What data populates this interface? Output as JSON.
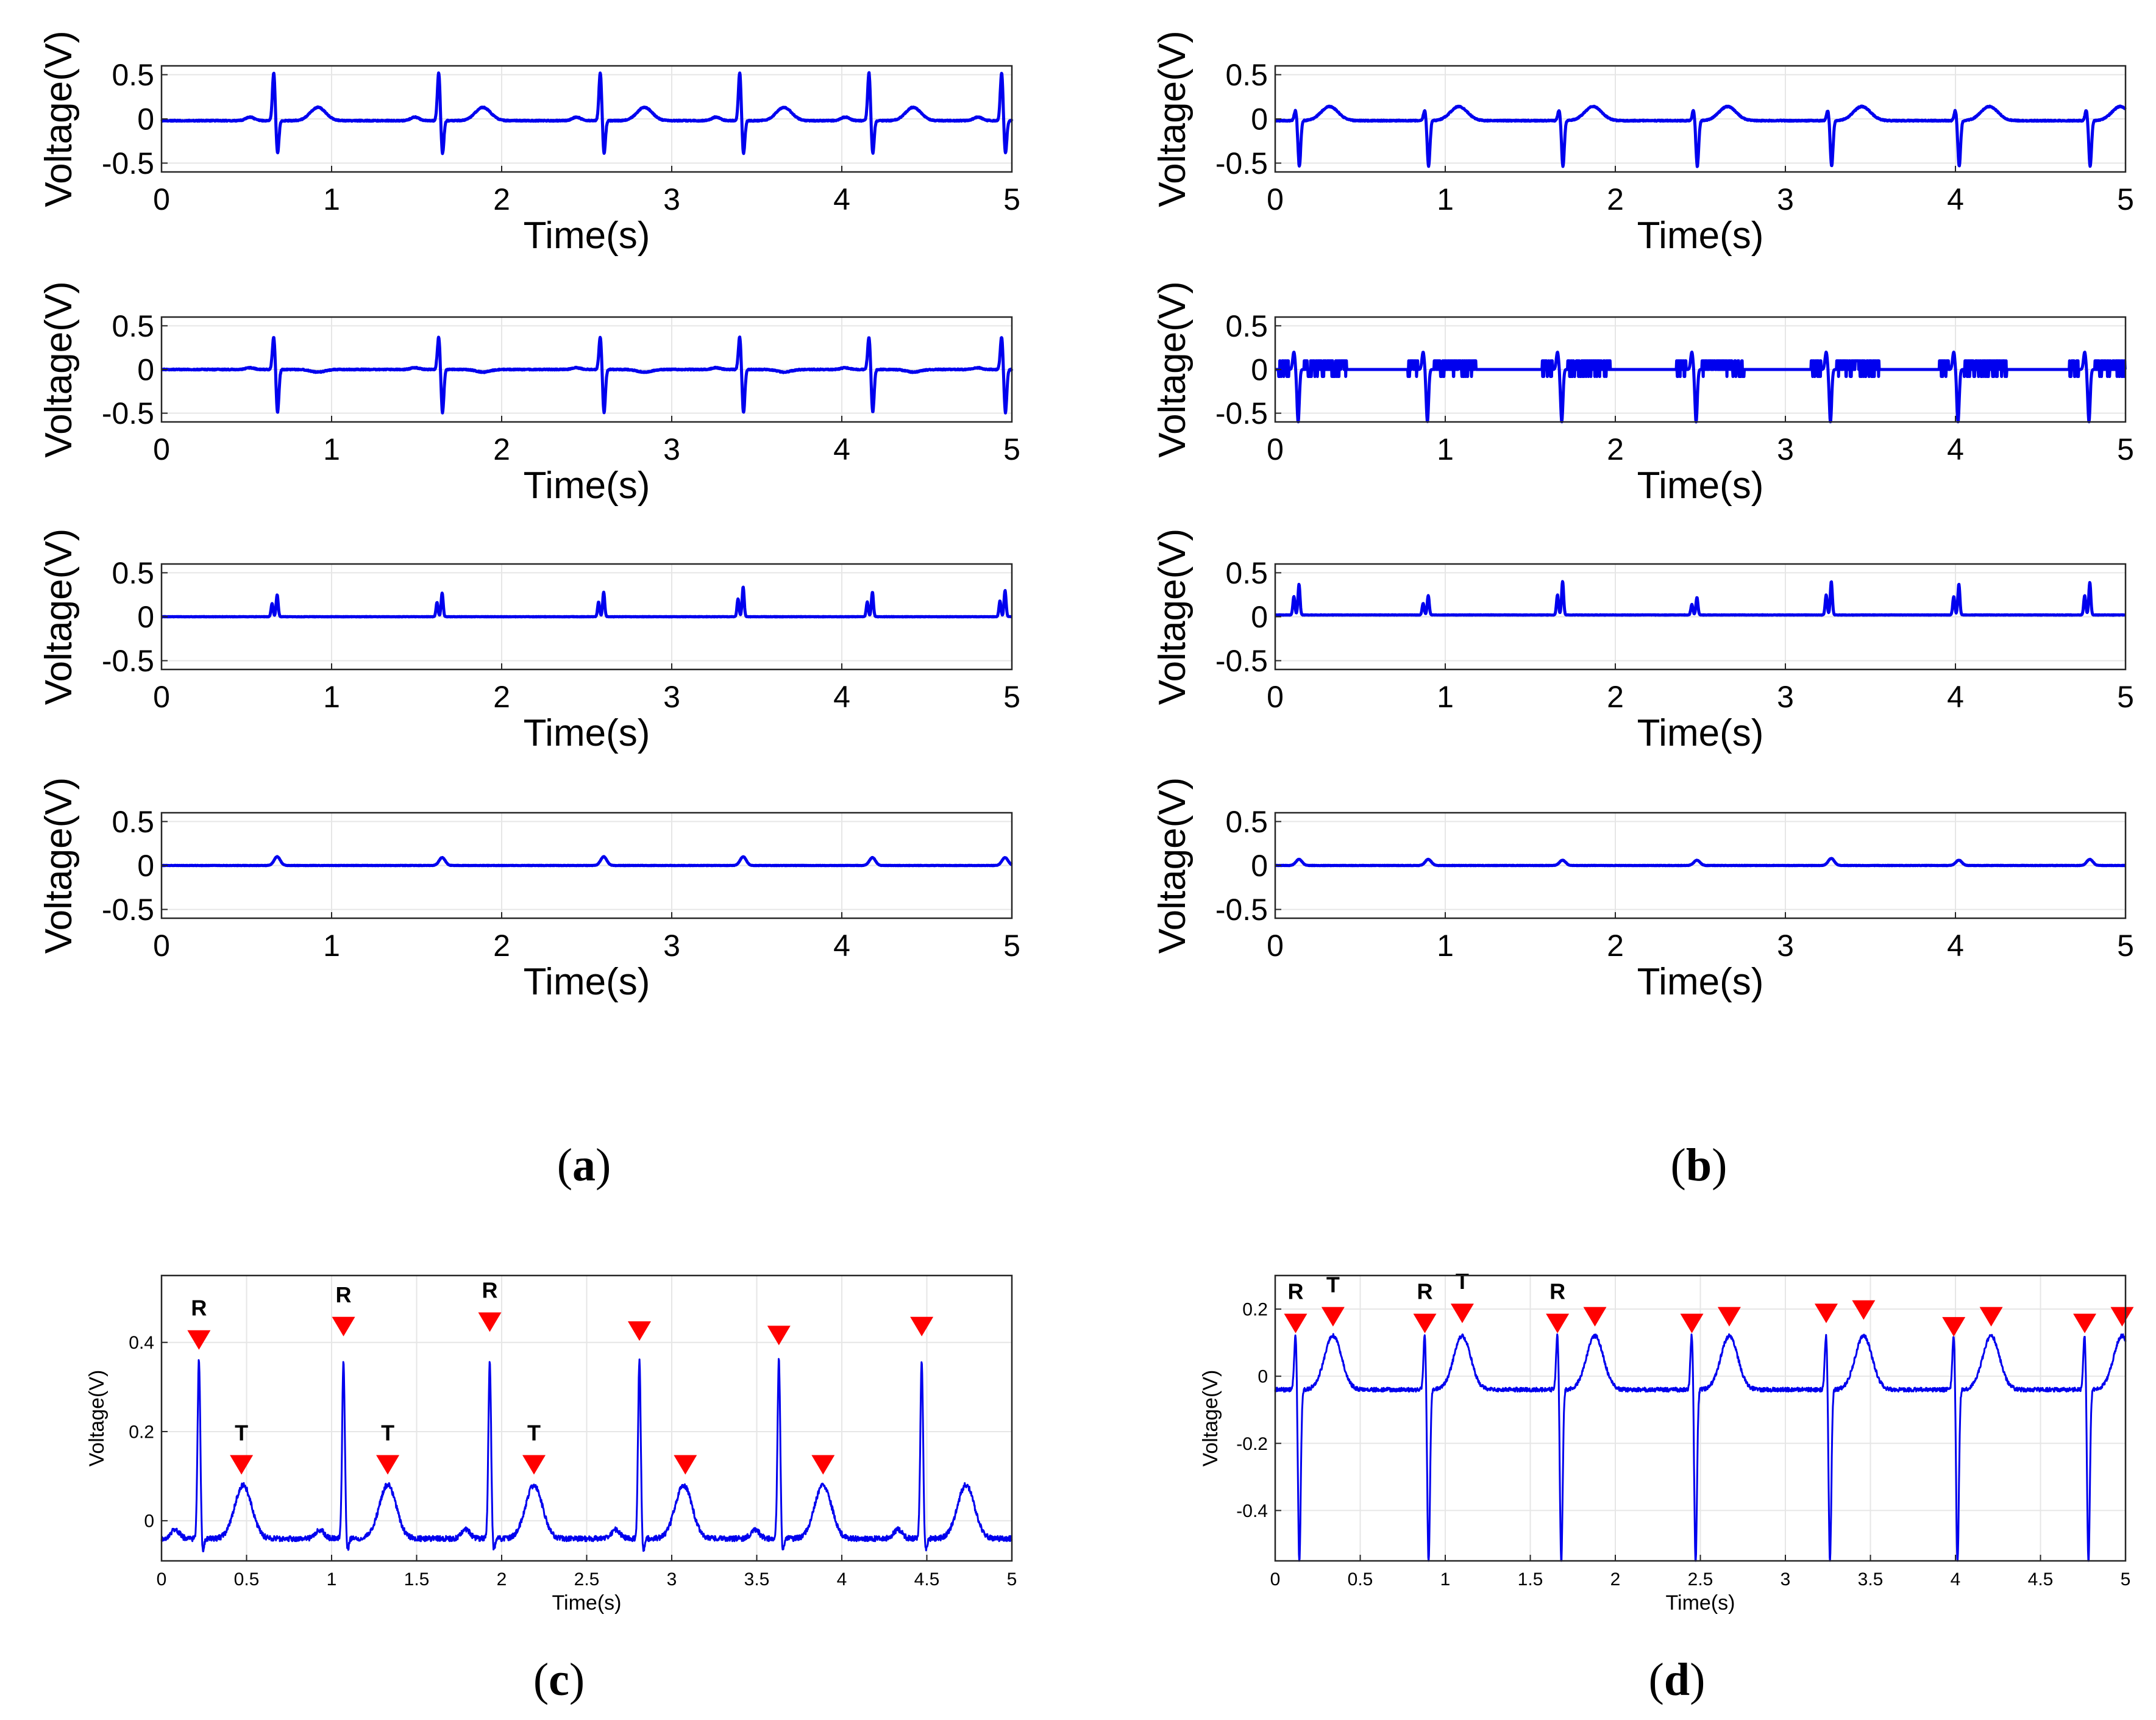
{
  "figure": {
    "captions": [
      {
        "open": "(",
        "letter": "a",
        "close": ")"
      },
      {
        "open": "(",
        "letter": "b",
        "close": ")"
      },
      {
        "open": "(",
        "letter": "c",
        "close": ")"
      },
      {
        "open": "(",
        "letter": "d",
        "close": ")"
      }
    ]
  },
  "colors": {
    "trace": "#0000ee",
    "marker": "#ff0000",
    "grid": "#e6e6e6",
    "axis": "#262626"
  },
  "chart_data": [
    {
      "id": "a1",
      "panel": "a",
      "type": "line",
      "title": "",
      "xlabel": "Time(s)",
      "ylabel": "Voltage(V)",
      "xlim": [
        0,
        5
      ],
      "ylim": [
        -0.6,
        0.6
      ],
      "xticks": [
        "0",
        "1",
        "2",
        "3",
        "4",
        "5"
      ],
      "yticks": [
        "0.5",
        "0",
        "-0.5"
      ],
      "ytick_values": [
        0.5,
        0,
        -0.5
      ],
      "xtick_values": [
        0,
        1,
        2,
        3,
        4,
        5
      ],
      "signal": {
        "kind": "ecg",
        "beats": [
          0.66,
          1.63,
          2.58,
          3.4,
          4.16,
          4.94
        ],
        "r_amp": 0.55,
        "s_amp": -0.38,
        "t_amp": 0.15,
        "t_delay": 0.26,
        "t_width": 0.045,
        "p_amp": 0.04,
        "baseline": -0.02
      }
    },
    {
      "id": "a2",
      "panel": "a",
      "type": "line",
      "title": "",
      "xlabel": "Time(s)",
      "ylabel": "Voltage(V)",
      "xlim": [
        0,
        5
      ],
      "ylim": [
        -0.6,
        0.6
      ],
      "xticks": [
        "0",
        "1",
        "2",
        "3",
        "4",
        "5"
      ],
      "yticks": [
        "0.5",
        "0",
        "-0.5"
      ],
      "ytick_values": [
        0.5,
        0,
        -0.5
      ],
      "xtick_values": [
        0,
        1,
        2,
        3,
        4,
        5
      ],
      "signal": {
        "kind": "ecg",
        "beats": [
          0.66,
          1.63,
          2.58,
          3.4,
          4.16,
          4.94
        ],
        "r_amp": 0.38,
        "s_amp": -0.5,
        "t_amp": -0.03,
        "t_delay": 0.26,
        "t_width": 0.04,
        "p_amp": 0.02,
        "baseline": 0.0
      }
    },
    {
      "id": "a3",
      "panel": "a",
      "type": "line",
      "title": "",
      "xlabel": "Time(s)",
      "ylabel": "Voltage(V)",
      "xlim": [
        0,
        5
      ],
      "ylim": [
        -0.6,
        0.6
      ],
      "xticks": [
        "0",
        "1",
        "2",
        "3",
        "4",
        "5"
      ],
      "yticks": [
        "0.5",
        "0",
        "-0.5"
      ],
      "ytick_values": [
        0.5,
        0,
        -0.5
      ],
      "xtick_values": [
        0,
        1,
        2,
        3,
        4,
        5
      ],
      "signal": {
        "kind": "spikes",
        "beats": [
          0.66,
          1.63,
          2.58,
          3.4,
          4.16,
          4.94
        ],
        "amps": [
          0.25,
          0.27,
          0.28,
          0.34,
          0.28,
          0.3
        ],
        "baseline": 0.0
      }
    },
    {
      "id": "a4",
      "panel": "a",
      "type": "line",
      "title": "",
      "xlabel": "Time(s)",
      "ylabel": "Voltage(V)",
      "xlim": [
        0,
        5
      ],
      "ylim": [
        -0.6,
        0.6
      ],
      "xticks": [
        "0",
        "1",
        "2",
        "3",
        "4",
        "5"
      ],
      "yticks": [
        "0.5",
        "0",
        "-0.5"
      ],
      "ytick_values": [
        0.5,
        0,
        -0.5
      ],
      "xtick_values": [
        0,
        1,
        2,
        3,
        4,
        5
      ],
      "signal": {
        "kind": "bumps",
        "beats": [
          0.66,
          1.63,
          2.58,
          3.4,
          4.16,
          4.94
        ],
        "amps": [
          0.1,
          0.09,
          0.1,
          0.1,
          0.09,
          0.09
        ],
        "baseline": 0.0
      }
    },
    {
      "id": "b1",
      "panel": "b",
      "type": "line",
      "title": "",
      "xlabel": "Time(s)",
      "ylabel": "Voltage(V)",
      "xlim": [
        0,
        5
      ],
      "ylim": [
        -0.6,
        0.6
      ],
      "xticks": [
        "0",
        "1",
        "2",
        "3",
        "4",
        "5"
      ],
      "yticks": [
        "0.5",
        "0",
        "-0.5"
      ],
      "ytick_values": [
        0.5,
        0,
        -0.5
      ],
      "xtick_values": [
        0,
        1,
        2,
        3,
        4,
        5
      ],
      "signal": {
        "kind": "ecg",
        "beats": [
          0.12,
          0.88,
          1.67,
          2.46,
          3.25,
          4.0,
          4.77
        ],
        "r_amp": 0.12,
        "s_amp": -0.52,
        "t_amp": 0.16,
        "t_delay": 0.2,
        "t_width": 0.05,
        "p_amp": 0.0,
        "baseline": -0.02
      }
    },
    {
      "id": "b2",
      "panel": "b",
      "type": "line",
      "title": "",
      "xlabel": "Time(s)",
      "ylabel": "Voltage(V)",
      "xlim": [
        0,
        5
      ],
      "ylim": [
        -0.6,
        0.6
      ],
      "xticks": [
        "0",
        "1",
        "2",
        "3",
        "4",
        "5"
      ],
      "yticks": [
        "0.5",
        "0",
        "-0.5"
      ],
      "ytick_values": [
        0.5,
        0,
        -0.5
      ],
      "xtick_values": [
        0,
        1,
        2,
        3,
        4,
        5
      ],
      "signal": {
        "kind": "quantized",
        "beats": [
          0.12,
          0.88,
          1.67,
          2.46,
          3.25,
          4.0,
          4.77
        ],
        "r_amp": 0.2,
        "s_amp": -0.6,
        "level": 0.1,
        "baseline": 0.0
      }
    },
    {
      "id": "b3",
      "panel": "b",
      "type": "line",
      "title": "",
      "xlabel": "Time(s)",
      "ylabel": "Voltage(V)",
      "xlim": [
        0,
        5
      ],
      "ylim": [
        -0.6,
        0.6
      ],
      "xticks": [
        "0",
        "1",
        "2",
        "3",
        "4",
        "5"
      ],
      "yticks": [
        "0.5",
        "0",
        "-0.5"
      ],
      "ytick_values": [
        0.5,
        0,
        -0.5
      ],
      "xtick_values": [
        0,
        1,
        2,
        3,
        4,
        5
      ],
      "signal": {
        "kind": "spikes",
        "beats": [
          0.12,
          0.88,
          1.67,
          2.46,
          3.25,
          4.0,
          4.77
        ],
        "amps": [
          0.35,
          0.22,
          0.38,
          0.2,
          0.38,
          0.35,
          0.37
        ],
        "baseline": 0.02
      }
    },
    {
      "id": "b4",
      "panel": "b",
      "type": "line",
      "title": "",
      "xlabel": "Time(s)",
      "ylabel": "Voltage(V)",
      "xlim": [
        0,
        5
      ],
      "ylim": [
        -0.6,
        0.6
      ],
      "xticks": [
        "0",
        "1",
        "2",
        "3",
        "4",
        "5"
      ],
      "yticks": [
        "0.5",
        "0",
        "-0.5"
      ],
      "ytick_values": [
        0.5,
        0,
        -0.5
      ],
      "xtick_values": [
        0,
        1,
        2,
        3,
        4,
        5
      ],
      "signal": {
        "kind": "bumps",
        "beats": [
          0.12,
          0.88,
          1.67,
          2.46,
          3.25,
          4.0,
          4.77
        ],
        "amps": [
          0.07,
          0.07,
          0.06,
          0.06,
          0.08,
          0.06,
          0.07
        ],
        "baseline": 0.0
      }
    },
    {
      "id": "c",
      "panel": "c",
      "type": "line",
      "title": "",
      "xlabel": "Time(s)",
      "ylabel": "Voltage(V)",
      "xlim": [
        0,
        5
      ],
      "ylim": [
        -0.09,
        0.55
      ],
      "xticks": [
        "0",
        "0.5",
        "1",
        "1.5",
        "2",
        "2.5",
        "3",
        "3.5",
        "4",
        "4.5",
        "5"
      ],
      "xtick_values": [
        0,
        0.5,
        1,
        1.5,
        2,
        2.5,
        3,
        3.5,
        4,
        4.5,
        5
      ],
      "yticks": [
        "0.4",
        "0.2",
        "0"
      ],
      "ytick_values": [
        0.4,
        0.2,
        0
      ],
      "signal": {
        "kind": "ecg",
        "beats": [
          0.22,
          1.07,
          1.93,
          2.81,
          3.63,
          4.47
        ],
        "r_amp": 0.4,
        "s_amp": -0.03,
        "t_amp": 0.12,
        "t_delay": 0.26,
        "t_width": 0.05,
        "p_amp": 0.02,
        "baseline": -0.04
      },
      "markers": [
        {
          "x": 0.22,
          "y": 0.4,
          "label": "R"
        },
        {
          "x": 0.47,
          "y": 0.12,
          "label": "T"
        },
        {
          "x": 1.07,
          "y": 0.43,
          "label": "R"
        },
        {
          "x": 1.33,
          "y": 0.12,
          "label": "T"
        },
        {
          "x": 1.93,
          "y": 0.44,
          "label": "R"
        },
        {
          "x": 2.19,
          "y": 0.12,
          "label": "T"
        },
        {
          "x": 2.81,
          "y": 0.42,
          "label": ""
        },
        {
          "x": 3.08,
          "y": 0.12,
          "label": ""
        },
        {
          "x": 3.63,
          "y": 0.41,
          "label": ""
        },
        {
          "x": 3.89,
          "y": 0.12,
          "label": ""
        },
        {
          "x": 4.47,
          "y": 0.43,
          "label": ""
        }
      ]
    },
    {
      "id": "d",
      "panel": "d",
      "type": "line",
      "title": "",
      "xlabel": "Time(s)",
      "ylabel": "Voltage(V)",
      "xlim": [
        0,
        5
      ],
      "ylim": [
        -0.55,
        0.3
      ],
      "xticks": [
        "0",
        "0.5",
        "1",
        "1.5",
        "2",
        "2.5",
        "3",
        "3.5",
        "4",
        "4.5",
        "5"
      ],
      "xtick_values": [
        0,
        0.5,
        1,
        1.5,
        2,
        2.5,
        3,
        3.5,
        4,
        4.5,
        5
      ],
      "yticks": [
        "0.2",
        "0",
        "-0.2",
        "-0.4"
      ],
      "ytick_values": [
        0.2,
        0,
        -0.2,
        -0.4
      ],
      "signal": {
        "kind": "ecg",
        "beats": [
          0.12,
          0.88,
          1.66,
          2.45,
          3.24,
          3.99,
          4.76
        ],
        "r_amp": 0.17,
        "s_amp": -0.52,
        "t_amp": 0.16,
        "t_delay": 0.22,
        "t_width": 0.05,
        "p_amp": 0.0,
        "baseline": -0.04
      },
      "markers": [
        {
          "x": 0.12,
          "y": 0.15,
          "label": "R"
        },
        {
          "x": 0.34,
          "y": 0.17,
          "label": "T"
        },
        {
          "x": 0.88,
          "y": 0.15,
          "label": "R"
        },
        {
          "x": 1.1,
          "y": 0.18,
          "label": "T"
        },
        {
          "x": 1.66,
          "y": 0.15,
          "label": "R"
        },
        {
          "x": 1.88,
          "y": 0.17,
          "label": ""
        },
        {
          "x": 2.45,
          "y": 0.15,
          "label": ""
        },
        {
          "x": 2.67,
          "y": 0.17,
          "label": ""
        },
        {
          "x": 3.24,
          "y": 0.18,
          "label": ""
        },
        {
          "x": 3.46,
          "y": 0.19,
          "label": ""
        },
        {
          "x": 3.99,
          "y": 0.14,
          "label": ""
        },
        {
          "x": 4.21,
          "y": 0.17,
          "label": ""
        },
        {
          "x": 4.76,
          "y": 0.15,
          "label": ""
        },
        {
          "x": 4.98,
          "y": 0.17,
          "label": ""
        }
      ]
    }
  ]
}
